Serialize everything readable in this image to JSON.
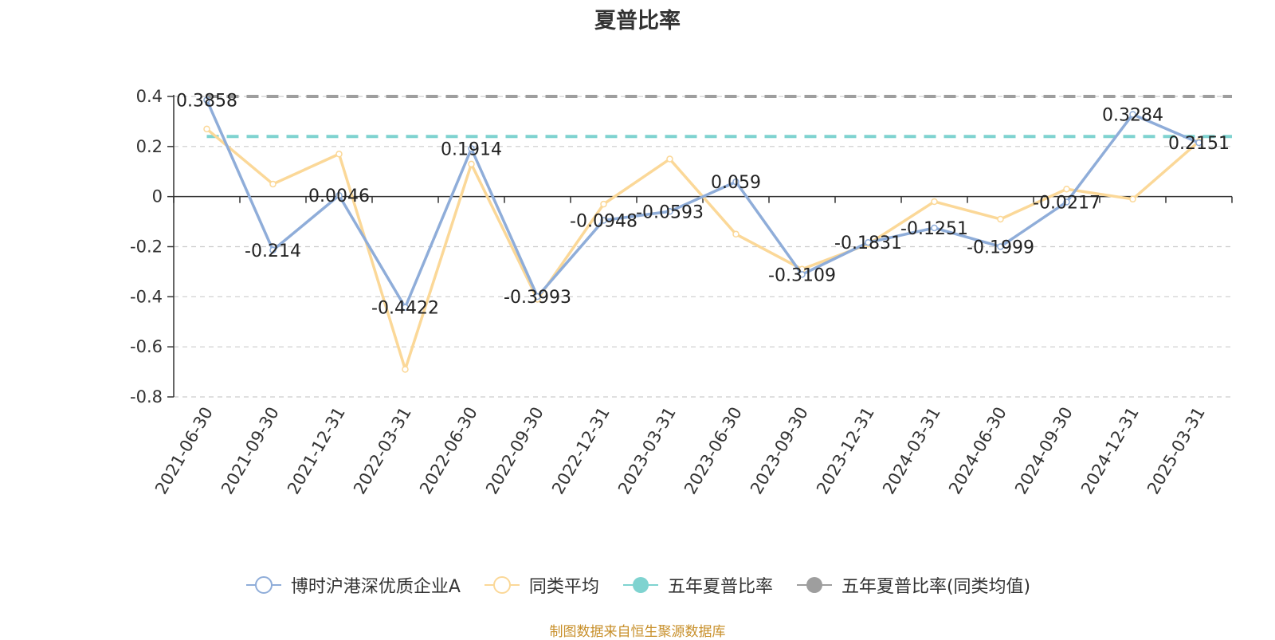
{
  "title": "夏普比率",
  "source_note": "制图数据来自恒生聚源数据库",
  "colors": {
    "fund": "#8fadd9",
    "peer": "#fbd898",
    "five_year": "#7fd3d0",
    "five_year_peer": "#9e9e9e",
    "source": "#c8902b"
  },
  "chart_data": {
    "type": "line",
    "title": "夏普比率",
    "categories": [
      "2021-06-30",
      "2021-09-30",
      "2021-12-31",
      "2022-03-31",
      "2022-06-30",
      "2022-09-30",
      "2022-12-31",
      "2023-03-31",
      "2023-06-30",
      "2023-09-30",
      "2023-12-31",
      "2024-03-31",
      "2024-06-30",
      "2024-09-30",
      "2024-12-31",
      "2025-03-31"
    ],
    "ylim": [
      -0.8,
      0.4
    ],
    "yticks": [
      0.4,
      0.2,
      0,
      -0.2,
      -0.4,
      -0.6,
      -0.8
    ],
    "ytick_labels": [
      "0.4",
      "0.2",
      "0",
      "-0.2",
      "-0.4",
      "-0.6",
      "-0.8"
    ],
    "grid": true,
    "legend_position": "bottom",
    "series": [
      {
        "name": "博时沪港深优质企业A",
        "values": [
          0.3858,
          -0.214,
          0.0046,
          -0.4422,
          0.1914,
          -0.3993,
          -0.0948,
          -0.0593,
          0.059,
          -0.3109,
          -0.1831,
          -0.1251,
          -0.1999,
          -0.0217,
          0.3284,
          0.2151
        ],
        "labels": [
          "0.3858",
          "-0.214",
          "0.0046",
          "-0.4422",
          "0.1914",
          "-0.3993",
          "-0.0948",
          "-0.0593",
          "0.059",
          "-0.3109",
          "-0.1831",
          "-0.1251",
          "-0.1999",
          "-0.0217",
          "0.3284",
          "0.2151"
        ]
      },
      {
        "name": "同类平均",
        "values": [
          0.27,
          0.05,
          0.17,
          -0.69,
          0.13,
          -0.41,
          -0.03,
          0.15,
          -0.15,
          -0.29,
          -0.19,
          -0.02,
          -0.09,
          0.03,
          -0.01,
          0.22
        ]
      },
      {
        "name": "五年夏普比率",
        "reference_value": 0.24
      },
      {
        "name": "五年夏普比率(同类均值)",
        "reference_value": 0.4
      }
    ]
  }
}
